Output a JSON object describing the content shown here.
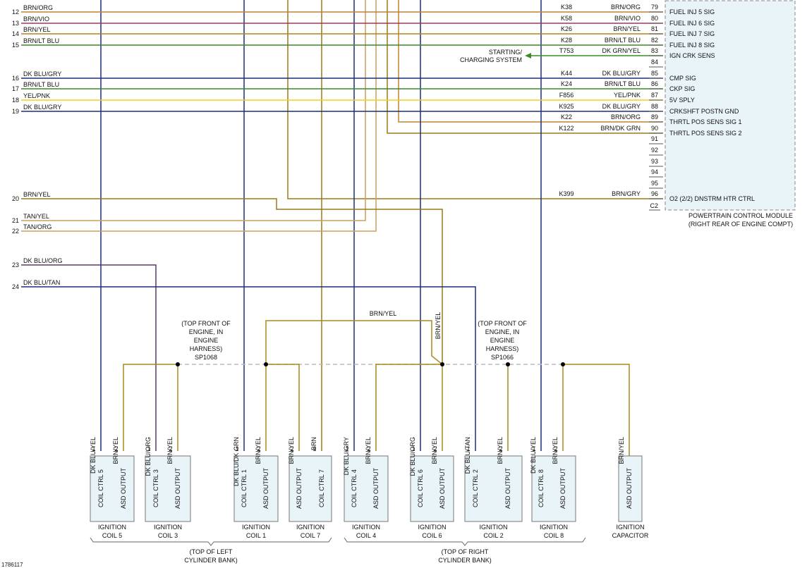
{
  "left_wires": [
    {
      "row": "12",
      "label": "BRN/ORG"
    },
    {
      "row": "13",
      "label": "BRN/VIO"
    },
    {
      "row": "14",
      "label": "BRN/YEL"
    },
    {
      "row": "15",
      "label": "BRN/LT BLU"
    },
    {
      "row": "16",
      "label": "DK BLU/GRY"
    },
    {
      "row": "17",
      "label": "BRN/LT BLU"
    },
    {
      "row": "18",
      "label": "YEL/PNK"
    },
    {
      "row": "19",
      "label": "DK BLU/GRY"
    },
    {
      "row": "20",
      "label": "BRN/YEL"
    },
    {
      "row": "21",
      "label": "TAN/YEL"
    },
    {
      "row": "22",
      "label": "TAN/ORG"
    },
    {
      "row": "23",
      "label": "DK BLU/ORG"
    },
    {
      "row": "24",
      "label": "DK BLU/TAN"
    }
  ],
  "pcm": {
    "pins": [
      {
        "circuit": "K38",
        "color": "BRN/ORG",
        "pin": "79",
        "function": "FUEL INJ 5 SIG"
      },
      {
        "circuit": "K58",
        "color": "BRN/VIO",
        "pin": "80",
        "function": "FUEL INJ 6 SIG"
      },
      {
        "circuit": "K26",
        "color": "BRN/YEL",
        "pin": "81",
        "function": "FUEL INJ 7 SIG"
      },
      {
        "circuit": "K28",
        "color": "BRN/LT BLU",
        "pin": "82",
        "function": "FUEL INJ 8 SIG"
      },
      {
        "circuit": "T753",
        "color": "DK GRN/YEL",
        "pin": "83",
        "function": "IGN CRK SENS"
      },
      {
        "pin": "84"
      },
      {
        "circuit": "K44",
        "color": "DK BLU/GRY",
        "pin": "85",
        "function": "CMP SIG"
      },
      {
        "circuit": "K24",
        "color": "BRN/LT BLU",
        "pin": "86",
        "function": "CKP SIG"
      },
      {
        "circuit": "F856",
        "color": "YEL/PNK",
        "pin": "87",
        "function": "5V SPLY"
      },
      {
        "circuit": "K925",
        "color": "DK BLU/GRY",
        "pin": "88",
        "function": "CRKSHFT POSTN GND"
      },
      {
        "circuit": "K22",
        "color": "BRN/ORG",
        "pin": "89",
        "function": "THRTL POS SENS SIG 1"
      },
      {
        "circuit": "K122",
        "color": "BRN/DK GRN",
        "pin": "90",
        "function": "THRTL POS SENS SIG 2"
      },
      {
        "pin": "91"
      },
      {
        "pin": "92"
      },
      {
        "pin": "93"
      },
      {
        "pin": "94"
      },
      {
        "pin": "95"
      },
      {
        "circuit": "K399",
        "color": "BRN/GRY",
        "pin": "96",
        "function": "O2 (2/2) DNSTRM HTR CTRL"
      }
    ],
    "connector": "C2",
    "title": "POWERTRAIN CONTROL MODULE",
    "subtitle": "(RIGHT REAR OF ENGINE COMPT)"
  },
  "starting_system": [
    "STARTING/",
    "CHARGING SYSTEM"
  ],
  "splices": [
    {
      "lines": [
        "(TOP FRONT OF",
        "ENGINE, IN",
        "ENGINE",
        "HARNESS)",
        "SP1068"
      ]
    },
    {
      "lines": [
        "(TOP FRONT OF",
        "ENGINE, IN",
        "ENGINE",
        "HARNESS)",
        "SP1066"
      ]
    }
  ],
  "brn_yel_label": "BRN/YEL",
  "brn_yel_vertical": "BRN/YEL",
  "components": [
    {
      "pins": [
        {
          "num": "1",
          "wire": "DK BLU/YEL",
          "label": "COIL CTRL 5"
        },
        {
          "num": "2",
          "wire": "BRN/YEL",
          "label": "ASD OUTPUT"
        }
      ],
      "name": [
        "IGNITION",
        "COIL 5"
      ]
    },
    {
      "pins": [
        {
          "num": "1",
          "wire": "DK BLU/ORG",
          "label": "COIL CTRL 3"
        },
        {
          "num": "2",
          "wire": "BRN/YEL",
          "label": "ASD OUTPUT"
        }
      ],
      "name": [
        "IGNITION",
        "COIL 3"
      ]
    },
    {
      "pins": [
        {
          "num": "1",
          "wire": "DK BLU/DK GRN",
          "label": "COIL CTRL 1"
        },
        {
          "num": "2",
          "wire": "BRN/YEL",
          "label": "ASD OUTPUT"
        }
      ],
      "name": [
        "IGNITION",
        "COIL 1"
      ]
    },
    {
      "pins": [
        {
          "num": "2",
          "wire": "BRN/YEL",
          "label": "ASD OUTPUT"
        },
        {
          "num": "1",
          "wire": "BRN",
          "label": "COIL CTRL 7"
        }
      ],
      "name": [
        "IGNITION",
        "COIL 7"
      ]
    },
    {
      "pins": [
        {
          "num": "1",
          "wire": "DK BLU/GRY",
          "label": "COIL CTRL 4"
        },
        {
          "num": "2",
          "wire": "BRN/YEL",
          "label": "ASD OUTPUT"
        }
      ],
      "name": [
        "IGNITION",
        "COIL 4"
      ]
    },
    {
      "pins": [
        {
          "num": "1",
          "wire": "DK BLU/ORG",
          "label": "COIL CTRL 6"
        },
        {
          "num": "2",
          "wire": "BRN/YEL",
          "label": "ASD OUTPUT"
        }
      ],
      "name": [
        "IGNITION",
        "COIL 6"
      ]
    },
    {
      "pins": [
        {
          "num": "1",
          "wire": "DK BLU/TAN",
          "label": "COIL CTRL 2"
        },
        {
          "num": "2",
          "wire": "BRN/YEL",
          "label": "ASD OUTPUT"
        }
      ],
      "name": [
        "IGNITION",
        "COIL 2"
      ]
    },
    {
      "pins": [
        {
          "num": "1",
          "wire": "DK BLU/YEL",
          "label": "COIL CTRL 8"
        },
        {
          "num": "2",
          "wire": "BRN/YEL",
          "label": "ASD OUTPUT"
        }
      ],
      "name": [
        "IGNITION",
        "COIL 8"
      ]
    },
    {
      "pins": [
        {
          "wire": "BRN/YEL",
          "label": "ASD OUTPUT"
        }
      ],
      "name": [
        "IGNITION",
        "CAPACITOR"
      ]
    }
  ],
  "groups": [
    {
      "lines": [
        "(TOP OF LEFT",
        "CYLINDER BANK)"
      ]
    },
    {
      "lines": [
        "(TOP OF RIGHT",
        "CYLINDER BANK)"
      ]
    }
  ],
  "figure_id": "1786117"
}
